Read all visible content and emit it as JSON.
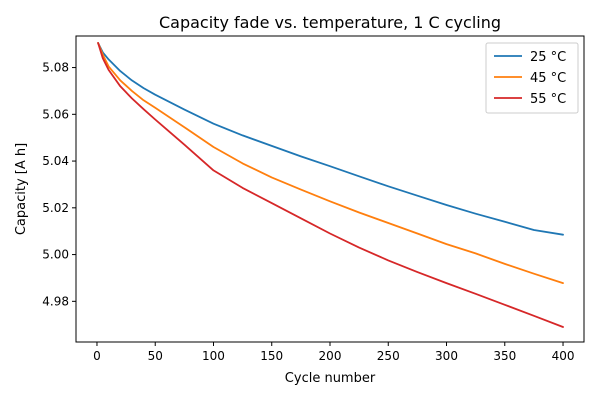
{
  "chart_data": {
    "type": "line",
    "title": "Capacity fade vs. temperature, 1 C cycling",
    "xlabel": "Cycle number",
    "ylabel": "Capacity [A h]",
    "xlim": [
      -18,
      418
    ],
    "ylim": [
      4.9626,
      5.0935
    ],
    "xticks": [
      0,
      50,
      100,
      150,
      200,
      250,
      300,
      350,
      400
    ],
    "yticks": [
      4.98,
      5.0,
      5.02,
      5.04,
      5.06,
      5.08
    ],
    "ytick_labels": [
      "4.98",
      "5.00",
      "5.02",
      "5.04",
      "5.06",
      "5.08"
    ],
    "grid": false,
    "legend_position": "top-right",
    "x": [
      1,
      5,
      10,
      20,
      30,
      40,
      50,
      75,
      100,
      125,
      150,
      175,
      200,
      225,
      250,
      275,
      300,
      325,
      350,
      375,
      400
    ],
    "series": [
      {
        "name": "25 °C",
        "color": "#1f77b4",
        "values": [
          5.0905,
          5.0865,
          5.0835,
          5.0785,
          5.0745,
          5.0712,
          5.0684,
          5.062,
          5.056,
          5.051,
          5.0465,
          5.042,
          5.0378,
          5.0335,
          5.0292,
          5.0252,
          5.0212,
          5.0175,
          5.014,
          5.0105,
          5.0085
        ]
      },
      {
        "name": "45 °C",
        "color": "#ff7f0e",
        "values": [
          5.0905,
          5.0855,
          5.0805,
          5.0745,
          5.07,
          5.066,
          5.0628,
          5.0545,
          5.046,
          5.039,
          5.033,
          5.0278,
          5.0228,
          5.018,
          5.0135,
          5.009,
          5.0045,
          5.0005,
          4.996,
          4.9918,
          4.9878
        ]
      },
      {
        "name": "55 °C",
        "color": "#d62728",
        "values": [
          5.0905,
          5.084,
          5.079,
          5.072,
          5.0668,
          5.0622,
          5.0578,
          5.047,
          5.036,
          5.0285,
          5.022,
          5.0155,
          5.009,
          5.003,
          4.9975,
          4.9925,
          4.9878,
          4.9832,
          4.9785,
          4.9738,
          4.969
        ]
      }
    ]
  }
}
